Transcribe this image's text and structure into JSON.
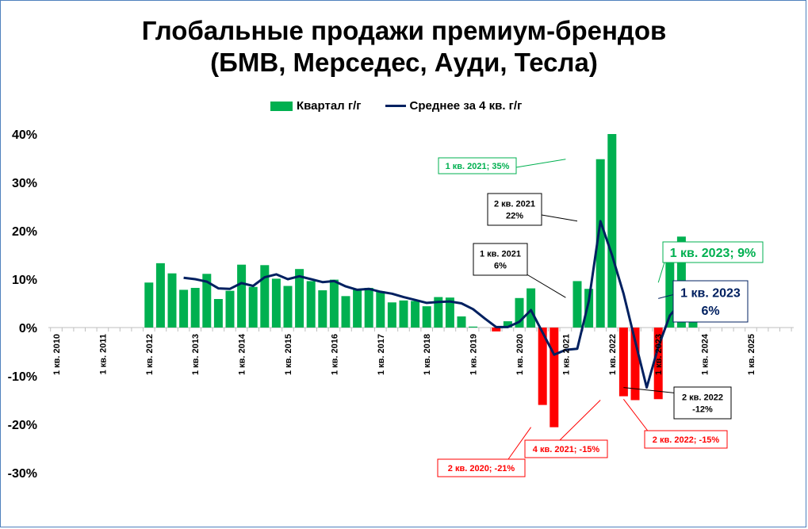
{
  "chart_data": {
    "type": "bar",
    "title": "Глобальные продажи премиум-брендов (БМВ, Мерседес, Ауди, Тесла)",
    "title_lines": [
      "Глобальные продажи премиум-брендов",
      "(БМВ, Мерседес, Ауди, Тесла)"
    ],
    "xlabel": "",
    "ylabel": "",
    "ylim": [
      -30,
      40
    ],
    "y_ticks": [
      40,
      30,
      20,
      10,
      0,
      -10,
      -20,
      -30
    ],
    "y_tick_labels": [
      "40%",
      "30%",
      "20%",
      "10%",
      "0%",
      "-10%",
      "-20%",
      "-30%"
    ],
    "grid": false,
    "legend": "top-center",
    "x_start": "1 кв. 2010",
    "x_labels": [
      "1 кв. 2010",
      "1 кв. 2011",
      "1 кв. 2012",
      "1 кв. 2013",
      "1 кв. 2014",
      "1 кв. 2015",
      "1 кв. 2016",
      "1 кв. 2017",
      "1 кв. 2018",
      "1 кв. 2019",
      "1 кв. 2020",
      "1 кв. 2021",
      "1 кв. 2022",
      "1 кв. 2023",
      "1 кв. 2024",
      "1 кв. 2025"
    ],
    "colors": {
      "positive": "#00b050",
      "negative": "#ff0000",
      "line": "#002060"
    },
    "series": [
      {
        "name": "Квартал г/г",
        "kind": "bar",
        "values": [
          null,
          null,
          null,
          null,
          null,
          null,
          null,
          null,
          9.3,
          13.3,
          11.2,
          7.8,
          8.2,
          11.1,
          5.9,
          7.6,
          13.0,
          8.4,
          12.9,
          10.1,
          8.6,
          12.1,
          9.6,
          7.7,
          9.9,
          6.5,
          7.8,
          8.2,
          7.5,
          5.2,
          5.6,
          5.5,
          4.4,
          6.3,
          6.2,
          2.3,
          0.2,
          null,
          -0.8,
          1.3,
          6.1,
          8.1,
          -16.0,
          -20.6,
          null,
          9.6,
          8.0,
          34.8,
          40.0,
          -14.2,
          -15.0,
          null,
          -14.8,
          15.2,
          18.8,
          9.3
        ]
      },
      {
        "name": "Среднее за 4 кв. г/г",
        "kind": "line",
        "values": [
          null,
          null,
          null,
          null,
          null,
          null,
          null,
          null,
          null,
          null,
          null,
          10.3,
          10.0,
          9.5,
          8.1,
          8.0,
          9.2,
          8.6,
          10.4,
          11.0,
          10.0,
          10.6,
          10.0,
          9.4,
          9.6,
          8.5,
          7.8,
          8.0,
          7.4,
          7.0,
          6.3,
          5.7,
          5.1,
          5.3,
          5.4,
          5.0,
          3.8,
          1.9,
          0.1,
          0.1,
          1.2,
          3.6,
          -1.0,
          -5.6,
          -4.6,
          -4.4,
          5.5,
          22.0,
          15.0,
          7.0,
          -2.8,
          -12.4,
          -4.0,
          2.5,
          5.3,
          6.0
        ]
      }
    ],
    "annotations": [
      {
        "text": "1 кв. 2021; 35%",
        "style": "green",
        "target": [
          44,
          34.8
        ]
      },
      {
        "lines": [
          "2 кв. 2021",
          "22%"
        ],
        "style": "black",
        "target": [
          45,
          22.0
        ]
      },
      {
        "lines": [
          "1 кв. 2021",
          "6%"
        ],
        "style": "black",
        "target": [
          44,
          6.2
        ]
      },
      {
        "text": "1 кв. 2023; 9%",
        "style": "green-large",
        "target": [
          52,
          9.3
        ]
      },
      {
        "lines": [
          "1 кв. 2023",
          "6%"
        ],
        "style": "navy-large",
        "target": [
          52,
          6.0
        ]
      },
      {
        "text": "2 кв. 2020; -21%",
        "style": "red",
        "target": [
          41,
          -20.6
        ]
      },
      {
        "text": "4 кв. 2021; -15%",
        "style": "red",
        "target": [
          47,
          -15.0
        ]
      },
      {
        "text": "2 кв. 2022; -15%",
        "style": "red",
        "target": [
          49,
          -14.8
        ]
      },
      {
        "lines": [
          "2 кв. 2022",
          "-12%"
        ],
        "style": "black",
        "target": [
          49,
          -12.4
        ]
      }
    ]
  }
}
